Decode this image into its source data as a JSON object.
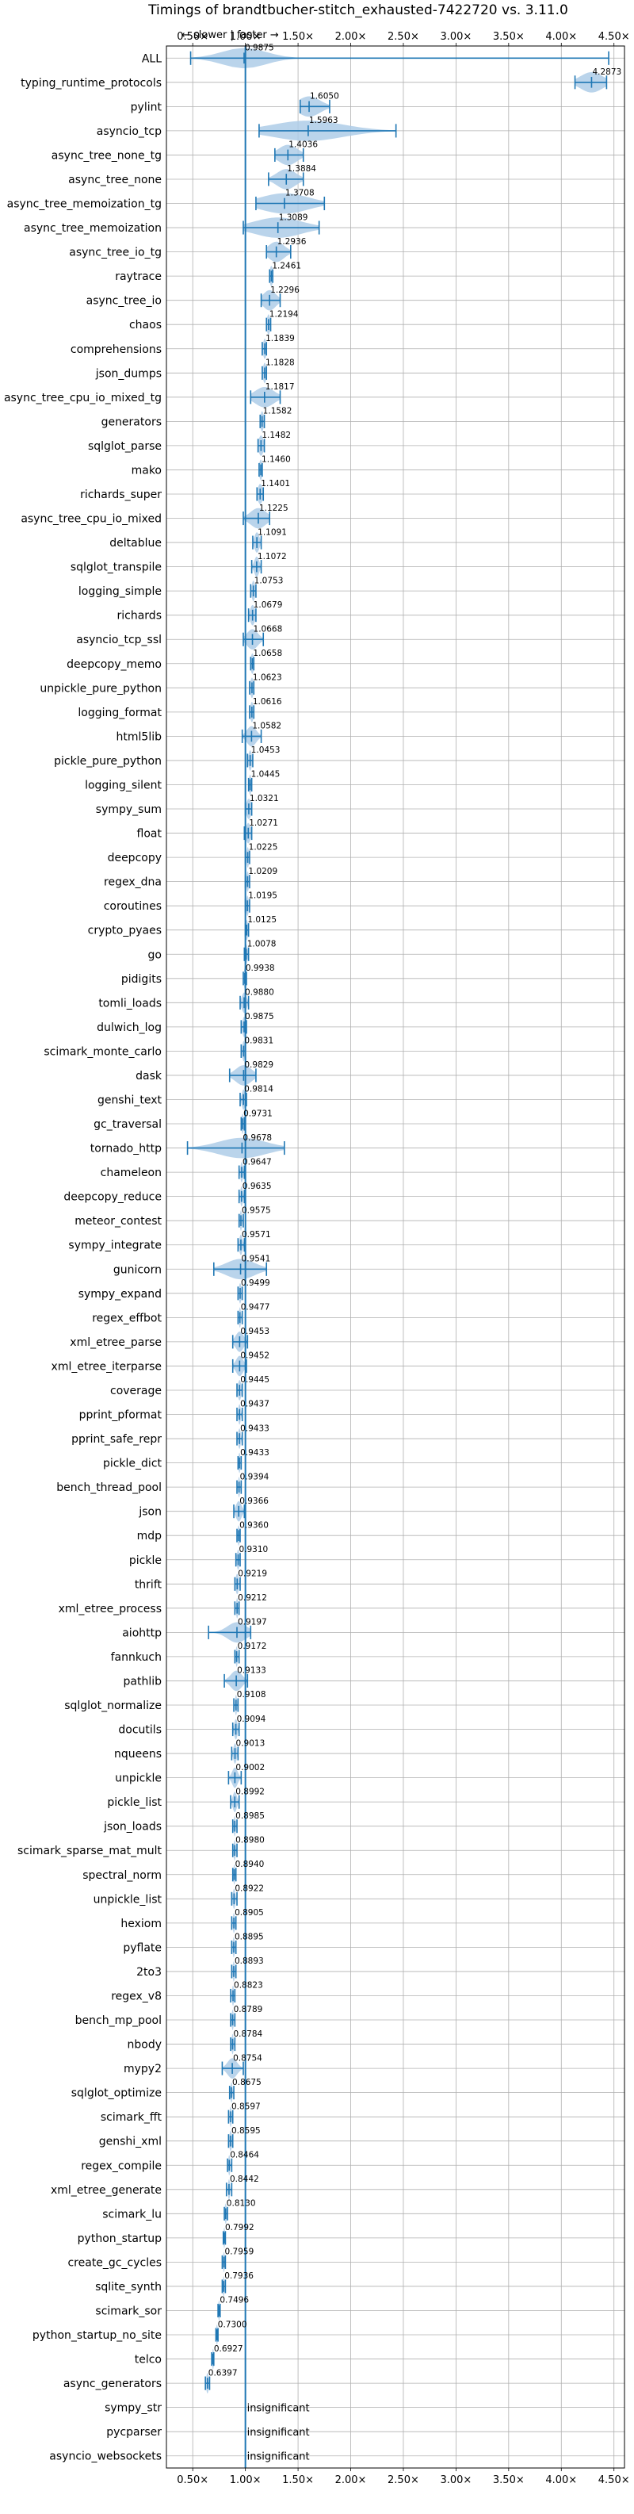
{
  "chart_data": {
    "type": "violin",
    "title": "Timings of brandtbucher-stitch_exhausted-7422720 vs. 3.11.0",
    "direction_label": "← slower | faster →",
    "xlim": [
      0.25,
      4.6
    ],
    "x_ticks": [
      0.5,
      1.0,
      1.5,
      2.0,
      2.5,
      3.0,
      3.5,
      4.0,
      4.5
    ],
    "x_tick_labels": [
      "0.50×",
      "1.00×",
      "1.50×",
      "2.00×",
      "2.50×",
      "3.00×",
      "3.50×",
      "4.00×",
      "4.50×"
    ],
    "reference_line": 1.0,
    "grid": true,
    "accent_color": "#1f77b4",
    "violin_color": "#aecde8",
    "insignificant_label": "insignificant",
    "benchmarks": [
      {
        "name": "ALL",
        "value": "0.9875",
        "center": 0.9875,
        "lo": 0.48,
        "hi": 4.45,
        "spread": 0.28
      },
      {
        "name": "typing_runtime_protocols",
        "value": "4.2873",
        "center": 4.2873,
        "lo": 4.13,
        "hi": 4.43,
        "spread": 0.14
      },
      {
        "name": "pylint",
        "value": "1.6050",
        "center": 1.605,
        "lo": 1.52,
        "hi": 1.8,
        "spread": 0.14
      },
      {
        "name": "asyncio_tcp",
        "value": "1.5963",
        "center": 1.5963,
        "lo": 1.13,
        "hi": 2.43,
        "spread": 0.45
      },
      {
        "name": "async_tree_none_tg",
        "value": "1.4036",
        "center": 1.4036,
        "lo": 1.28,
        "hi": 1.55,
        "spread": 0.12
      },
      {
        "name": "async_tree_none",
        "value": "1.3884",
        "center": 1.3884,
        "lo": 1.22,
        "hi": 1.55,
        "spread": 0.12
      },
      {
        "name": "async_tree_memoization_tg",
        "value": "1.3708",
        "center": 1.3708,
        "lo": 1.1,
        "hi": 1.75,
        "spread": 0.3
      },
      {
        "name": "async_tree_memoization",
        "value": "1.3089",
        "center": 1.3089,
        "lo": 0.98,
        "hi": 1.7,
        "spread": 0.3
      },
      {
        "name": "async_tree_io_tg",
        "value": "1.2936",
        "center": 1.2936,
        "lo": 1.2,
        "hi": 1.43,
        "spread": 0.1
      },
      {
        "name": "raytrace",
        "value": "1.2461",
        "center": 1.2461,
        "lo": 1.23,
        "hi": 1.26,
        "spread": 0.02
      },
      {
        "name": "async_tree_io",
        "value": "1.2296",
        "center": 1.2296,
        "lo": 1.15,
        "hi": 1.33,
        "spread": 0.08
      },
      {
        "name": "chaos",
        "value": "1.2194",
        "center": 1.2194,
        "lo": 1.2,
        "hi": 1.24,
        "spread": 0.02
      },
      {
        "name": "comprehensions",
        "value": "1.1839",
        "center": 1.1839,
        "lo": 1.16,
        "hi": 1.2,
        "spread": 0.02
      },
      {
        "name": "json_dumps",
        "value": "1.1828",
        "center": 1.1828,
        "lo": 1.16,
        "hi": 1.2,
        "spread": 0.02
      },
      {
        "name": "async_tree_cpu_io_mixed_tg",
        "value": "1.1817",
        "center": 1.1817,
        "lo": 1.05,
        "hi": 1.33,
        "spread": 0.12
      },
      {
        "name": "generators",
        "value": "1.1582",
        "center": 1.1582,
        "lo": 1.14,
        "hi": 1.18,
        "spread": 0.02
      },
      {
        "name": "sqlglot_parse",
        "value": "1.1482",
        "center": 1.1482,
        "lo": 1.12,
        "hi": 1.18,
        "spread": 0.03
      },
      {
        "name": "mako",
        "value": "1.1460",
        "center": 1.146,
        "lo": 1.13,
        "hi": 1.16,
        "spread": 0.02
      },
      {
        "name": "richards_super",
        "value": "1.1401",
        "center": 1.1401,
        "lo": 1.11,
        "hi": 1.17,
        "spread": 0.03
      },
      {
        "name": "async_tree_cpu_io_mixed",
        "value": "1.1225",
        "center": 1.1225,
        "lo": 0.98,
        "hi": 1.23,
        "spread": 0.1
      },
      {
        "name": "deltablue",
        "value": "1.1091",
        "center": 1.1091,
        "lo": 1.07,
        "hi": 1.15,
        "spread": 0.03
      },
      {
        "name": "sqlglot_transpile",
        "value": "1.1072",
        "center": 1.1072,
        "lo": 1.06,
        "hi": 1.15,
        "spread": 0.03
      },
      {
        "name": "logging_simple",
        "value": "1.0753",
        "center": 1.0753,
        "lo": 1.05,
        "hi": 1.1,
        "spread": 0.02
      },
      {
        "name": "richards",
        "value": "1.0679",
        "center": 1.0679,
        "lo": 1.03,
        "hi": 1.1,
        "spread": 0.03
      },
      {
        "name": "asyncio_tcp_ssl",
        "value": "1.0668",
        "center": 1.0668,
        "lo": 0.98,
        "hi": 1.17,
        "spread": 0.07
      },
      {
        "name": "deepcopy_memo",
        "value": "1.0658",
        "center": 1.0658,
        "lo": 1.05,
        "hi": 1.08,
        "spread": 0.02
      },
      {
        "name": "unpickle_pure_python",
        "value": "1.0623",
        "center": 1.0623,
        "lo": 1.04,
        "hi": 1.08,
        "spread": 0.02
      },
      {
        "name": "logging_format",
        "value": "1.0616",
        "center": 1.0616,
        "lo": 1.04,
        "hi": 1.08,
        "spread": 0.02
      },
      {
        "name": "html5lib",
        "value": "1.0582",
        "center": 1.0582,
        "lo": 0.97,
        "hi": 1.15,
        "spread": 0.06
      },
      {
        "name": "pickle_pure_python",
        "value": "1.0453",
        "center": 1.0453,
        "lo": 1.02,
        "hi": 1.07,
        "spread": 0.02
      },
      {
        "name": "logging_silent",
        "value": "1.0445",
        "center": 1.0445,
        "lo": 1.03,
        "hi": 1.06,
        "spread": 0.015
      },
      {
        "name": "sympy_sum",
        "value": "1.0321",
        "center": 1.0321,
        "lo": 1.0,
        "hi": 1.06,
        "spread": 0.03
      },
      {
        "name": "float",
        "value": "1.0271",
        "center": 1.0271,
        "lo": 0.99,
        "hi": 1.06,
        "spread": 0.03
      },
      {
        "name": "deepcopy",
        "value": "1.0225",
        "center": 1.0225,
        "lo": 1.0,
        "hi": 1.04,
        "spread": 0.015
      },
      {
        "name": "regex_dna",
        "value": "1.0209",
        "center": 1.0209,
        "lo": 1.0,
        "hi": 1.04,
        "spread": 0.015
      },
      {
        "name": "coroutines",
        "value": "1.0195",
        "center": 1.0195,
        "lo": 1.0,
        "hi": 1.04,
        "spread": 0.015
      },
      {
        "name": "crypto_pyaes",
        "value": "1.0125",
        "center": 1.0125,
        "lo": 1.0,
        "hi": 1.03,
        "spread": 0.015
      },
      {
        "name": "go",
        "value": "1.0078",
        "center": 1.0078,
        "lo": 0.99,
        "hi": 1.03,
        "spread": 0.015
      },
      {
        "name": "pidigits",
        "value": "0.9938",
        "center": 0.9938,
        "lo": 0.98,
        "hi": 1.01,
        "spread": 0.012
      },
      {
        "name": "tomli_loads",
        "value": "0.9880",
        "center": 0.988,
        "lo": 0.95,
        "hi": 1.03,
        "spread": 0.03
      },
      {
        "name": "dulwich_log",
        "value": "0.9875",
        "center": 0.9875,
        "lo": 0.96,
        "hi": 1.01,
        "spread": 0.02
      },
      {
        "name": "scimark_monte_carlo",
        "value": "0.9831",
        "center": 0.9831,
        "lo": 0.96,
        "hi": 1.0,
        "spread": 0.015
      },
      {
        "name": "dask",
        "value": "0.9829",
        "center": 0.9829,
        "lo": 0.85,
        "hi": 1.1,
        "spread": 0.1
      },
      {
        "name": "genshi_text",
        "value": "0.9814",
        "center": 0.9814,
        "lo": 0.95,
        "hi": 1.01,
        "spread": 0.02
      },
      {
        "name": "gc_traversal",
        "value": "0.9731",
        "center": 0.9731,
        "lo": 0.96,
        "hi": 0.99,
        "spread": 0.012
      },
      {
        "name": "tornado_http",
        "value": "0.9678",
        "center": 0.9678,
        "lo": 0.45,
        "hi": 1.37,
        "spread": 0.3
      },
      {
        "name": "chameleon",
        "value": "0.9647",
        "center": 0.9647,
        "lo": 0.94,
        "hi": 0.99,
        "spread": 0.015
      },
      {
        "name": "deepcopy_reduce",
        "value": "0.9635",
        "center": 0.9635,
        "lo": 0.94,
        "hi": 0.99,
        "spread": 0.015
      },
      {
        "name": "meteor_contest",
        "value": "0.9575",
        "center": 0.9575,
        "lo": 0.94,
        "hi": 0.98,
        "spread": 0.012
      },
      {
        "name": "sympy_integrate",
        "value": "0.9571",
        "center": 0.9571,
        "lo": 0.93,
        "hi": 0.99,
        "spread": 0.02
      },
      {
        "name": "gunicorn",
        "value": "0.9541",
        "center": 0.9541,
        "lo": 0.7,
        "hi": 1.2,
        "spread": 0.18
      },
      {
        "name": "sympy_expand",
        "value": "0.9499",
        "center": 0.9499,
        "lo": 0.93,
        "hi": 0.97,
        "spread": 0.015
      },
      {
        "name": "regex_effbot",
        "value": "0.9477",
        "center": 0.9477,
        "lo": 0.93,
        "hi": 0.97,
        "spread": 0.012
      },
      {
        "name": "xml_etree_parse",
        "value": "0.9453",
        "center": 0.9453,
        "lo": 0.88,
        "hi": 1.02,
        "spread": 0.05
      },
      {
        "name": "xml_etree_iterparse",
        "value": "0.9452",
        "center": 0.9452,
        "lo": 0.88,
        "hi": 1.01,
        "spread": 0.045
      },
      {
        "name": "coverage",
        "value": "0.9445",
        "center": 0.9445,
        "lo": 0.92,
        "hi": 0.97,
        "spread": 0.02
      },
      {
        "name": "pprint_pformat",
        "value": "0.9437",
        "center": 0.9437,
        "lo": 0.92,
        "hi": 0.97,
        "spread": 0.015
      },
      {
        "name": "pprint_safe_repr",
        "value": "0.9433",
        "center": 0.9433,
        "lo": 0.92,
        "hi": 0.97,
        "spread": 0.015
      },
      {
        "name": "pickle_dict",
        "value": "0.9433",
        "center": 0.9433,
        "lo": 0.93,
        "hi": 0.96,
        "spread": 0.012
      },
      {
        "name": "bench_thread_pool",
        "value": "0.9394",
        "center": 0.9394,
        "lo": 0.92,
        "hi": 0.96,
        "spread": 0.012
      },
      {
        "name": "json",
        "value": "0.9366",
        "center": 0.9366,
        "lo": 0.89,
        "hi": 0.99,
        "spread": 0.035
      },
      {
        "name": "mdp",
        "value": "0.9360",
        "center": 0.936,
        "lo": 0.92,
        "hi": 0.95,
        "spread": 0.012
      },
      {
        "name": "pickle",
        "value": "0.9310",
        "center": 0.931,
        "lo": 0.91,
        "hi": 0.95,
        "spread": 0.015
      },
      {
        "name": "thrift",
        "value": "0.9219",
        "center": 0.9219,
        "lo": 0.9,
        "hi": 0.95,
        "spread": 0.02
      },
      {
        "name": "xml_etree_process",
        "value": "0.9212",
        "center": 0.9212,
        "lo": 0.9,
        "hi": 0.94,
        "spread": 0.012
      },
      {
        "name": "aiohttp",
        "value": "0.9197",
        "center": 0.9197,
        "lo": 0.65,
        "hi": 1.05,
        "spread": 0.12
      },
      {
        "name": "fannkuch",
        "value": "0.9172",
        "center": 0.9172,
        "lo": 0.9,
        "hi": 0.94,
        "spread": 0.012
      },
      {
        "name": "pathlib",
        "value": "0.9133",
        "center": 0.9133,
        "lo": 0.8,
        "hi": 1.02,
        "spread": 0.07
      },
      {
        "name": "sqlglot_normalize",
        "value": "0.9108",
        "center": 0.9108,
        "lo": 0.89,
        "hi": 0.93,
        "spread": 0.012
      },
      {
        "name": "docutils",
        "value": "0.9094",
        "center": 0.9094,
        "lo": 0.88,
        "hi": 0.94,
        "spread": 0.02
      },
      {
        "name": "nqueens",
        "value": "0.9013",
        "center": 0.9013,
        "lo": 0.87,
        "hi": 0.93,
        "spread": 0.02
      },
      {
        "name": "unpickle",
        "value": "0.9002",
        "center": 0.9002,
        "lo": 0.84,
        "hi": 0.96,
        "spread": 0.035
      },
      {
        "name": "pickle_list",
        "value": "0.8992",
        "center": 0.8992,
        "lo": 0.86,
        "hi": 0.94,
        "spread": 0.025
      },
      {
        "name": "json_loads",
        "value": "0.8985",
        "center": 0.8985,
        "lo": 0.88,
        "hi": 0.92,
        "spread": 0.012
      },
      {
        "name": "scimark_sparse_mat_mult",
        "value": "0.8980",
        "center": 0.898,
        "lo": 0.88,
        "hi": 0.92,
        "spread": 0.012
      },
      {
        "name": "spectral_norm",
        "value": "0.8940",
        "center": 0.894,
        "lo": 0.88,
        "hi": 0.91,
        "spread": 0.01
      },
      {
        "name": "unpickle_list",
        "value": "0.8922",
        "center": 0.8922,
        "lo": 0.87,
        "hi": 0.92,
        "spread": 0.015
      },
      {
        "name": "hexiom",
        "value": "0.8905",
        "center": 0.8905,
        "lo": 0.87,
        "hi": 0.91,
        "spread": 0.012
      },
      {
        "name": "pyflate",
        "value": "0.8895",
        "center": 0.8895,
        "lo": 0.87,
        "hi": 0.91,
        "spread": 0.012
      },
      {
        "name": "2to3",
        "value": "0.8893",
        "center": 0.8893,
        "lo": 0.87,
        "hi": 0.91,
        "spread": 0.012
      },
      {
        "name": "regex_v8",
        "value": "0.8823",
        "center": 0.8823,
        "lo": 0.86,
        "hi": 0.9,
        "spread": 0.012
      },
      {
        "name": "bench_mp_pool",
        "value": "0.8789",
        "center": 0.8789,
        "lo": 0.86,
        "hi": 0.9,
        "spread": 0.012
      },
      {
        "name": "nbody",
        "value": "0.8784",
        "center": 0.8784,
        "lo": 0.86,
        "hi": 0.9,
        "spread": 0.012
      },
      {
        "name": "mypy2",
        "value": "0.8754",
        "center": 0.8754,
        "lo": 0.78,
        "hi": 0.98,
        "spread": 0.06
      },
      {
        "name": "sqlglot_optimize",
        "value": "0.8675",
        "center": 0.8675,
        "lo": 0.85,
        "hi": 0.89,
        "spread": 0.012
      },
      {
        "name": "scimark_fft",
        "value": "0.8597",
        "center": 0.8597,
        "lo": 0.84,
        "hi": 0.88,
        "spread": 0.012
      },
      {
        "name": "genshi_xml",
        "value": "0.8595",
        "center": 0.8595,
        "lo": 0.84,
        "hi": 0.88,
        "spread": 0.015
      },
      {
        "name": "regex_compile",
        "value": "0.8464",
        "center": 0.8464,
        "lo": 0.83,
        "hi": 0.87,
        "spread": 0.012
      },
      {
        "name": "xml_etree_generate",
        "value": "0.8442",
        "center": 0.8442,
        "lo": 0.82,
        "hi": 0.87,
        "spread": 0.012
      },
      {
        "name": "scimark_lu",
        "value": "0.8130",
        "center": 0.813,
        "lo": 0.8,
        "hi": 0.83,
        "spread": 0.012
      },
      {
        "name": "python_startup",
        "value": "0.7992",
        "center": 0.7992,
        "lo": 0.79,
        "hi": 0.81,
        "spread": 0.01
      },
      {
        "name": "create_gc_cycles",
        "value": "0.7959",
        "center": 0.7959,
        "lo": 0.78,
        "hi": 0.81,
        "spread": 0.01
      },
      {
        "name": "sqlite_synth",
        "value": "0.7936",
        "center": 0.7936,
        "lo": 0.78,
        "hi": 0.81,
        "spread": 0.01
      },
      {
        "name": "scimark_sor",
        "value": "0.7496",
        "center": 0.7496,
        "lo": 0.74,
        "hi": 0.76,
        "spread": 0.01
      },
      {
        "name": "python_startup_no_site",
        "value": "0.7300",
        "center": 0.73,
        "lo": 0.72,
        "hi": 0.74,
        "spread": 0.01
      },
      {
        "name": "telco",
        "value": "0.6927",
        "center": 0.6927,
        "lo": 0.68,
        "hi": 0.7,
        "spread": 0.01
      },
      {
        "name": "async_generators",
        "value": "0.6397",
        "center": 0.6397,
        "lo": 0.62,
        "hi": 0.66,
        "spread": 0.015
      },
      {
        "name": "sympy_str",
        "value": "insignificant",
        "center": null,
        "lo": null,
        "hi": null,
        "spread": null
      },
      {
        "name": "pycparser",
        "value": "insignificant",
        "center": null,
        "lo": null,
        "hi": null,
        "spread": null
      },
      {
        "name": "asyncio_websockets",
        "value": "insignificant",
        "center": null,
        "lo": null,
        "hi": null,
        "spread": null
      }
    ]
  }
}
